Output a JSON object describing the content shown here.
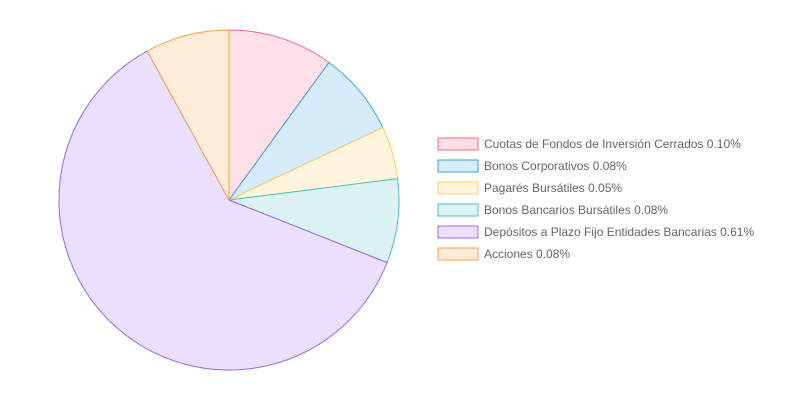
{
  "chart_data": {
    "type": "pie",
    "title": "",
    "legend_position": "right",
    "slices": [
      {
        "label": "Cuotas de Fondos de Inversión Cerrados 0.10%",
        "value": 0.1,
        "fill": "#ffe0e6",
        "stroke": "#ff6384"
      },
      {
        "label": "Bonos Corporativos 0.08%",
        "value": 0.08,
        "fill": "#d7ecfb",
        "stroke": "#36a2eb"
      },
      {
        "label": "Pagarés Bursátiles 0.05%",
        "value": 0.05,
        "fill": "#fff5dd",
        "stroke": "#ffce56"
      },
      {
        "label": "Bonos Bancarios Bursátiles 0.08%",
        "value": 0.08,
        "fill": "#dbf2f2",
        "stroke": "#4bc0c0"
      },
      {
        "label": "Depósitos a Plazo Fijo Entidades Bancarias 0.61%",
        "value": 0.61,
        "fill": "#ebe0ff",
        "stroke": "#9966ff"
      },
      {
        "label": "Acciones 0.08%",
        "value": 0.08,
        "fill": "#ffecd9",
        "stroke": "#ff9f40"
      }
    ]
  }
}
